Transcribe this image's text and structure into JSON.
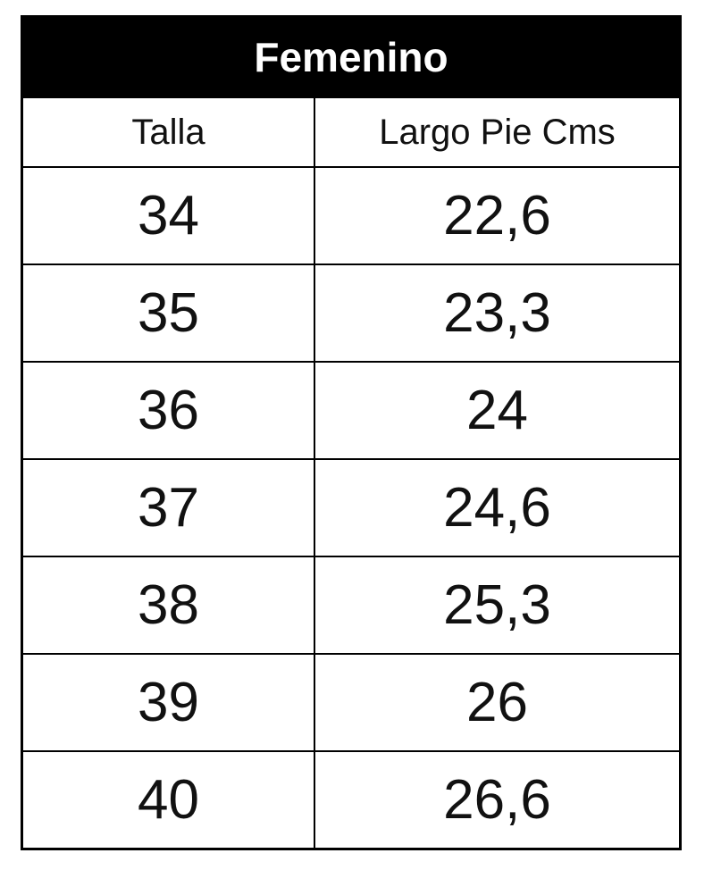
{
  "title": "Femenino",
  "headers": [
    "Talla",
    "Largo Pie Cms"
  ],
  "rows": [
    [
      "34",
      "22,6"
    ],
    [
      "35",
      "23,3"
    ],
    [
      "36",
      "24"
    ],
    [
      "37",
      "24,6"
    ],
    [
      "38",
      "25,3"
    ],
    [
      "39",
      "26"
    ],
    [
      "40",
      "26,6"
    ]
  ],
  "colors": {
    "header_bg": "#000000",
    "header_text": "#ffffff"
  }
}
